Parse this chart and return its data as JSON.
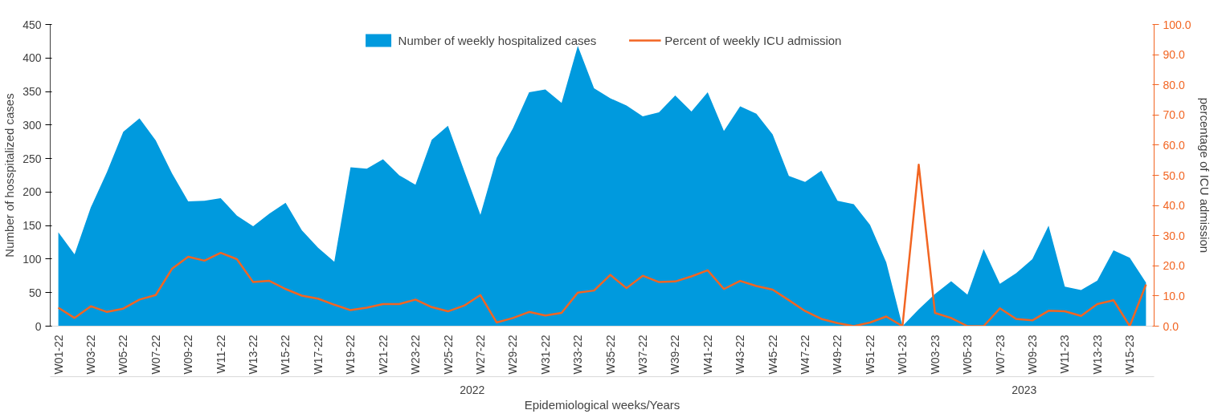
{
  "chart_data": {
    "type": "area",
    "xlabel": "Epidemiological weeks/Years",
    "ylabel": "Number of hosspitalized cases",
    "y2label": "percentage of ICU admission",
    "categories": [
      "W01-22",
      null,
      "W03-22",
      null,
      "W05-22",
      null,
      "W07-22",
      null,
      "W09-22",
      null,
      "W11-22",
      null,
      "W13-22",
      null,
      "W15-22",
      null,
      "W17-22",
      null,
      "W19-22",
      null,
      "W21-22",
      null,
      "W23-22",
      null,
      "W25-22",
      null,
      "W27-22",
      null,
      "W29-22",
      null,
      "W31-22",
      null,
      "W33-22",
      null,
      "W35-22",
      null,
      "W37-22",
      null,
      "W39-22",
      null,
      "W41-22",
      null,
      "W43-22",
      null,
      "W45-22",
      null,
      "W47-22",
      null,
      "W49-22",
      null,
      "W51-22",
      null,
      "W01-23",
      null,
      "W03-23",
      null,
      "W05-23",
      null,
      "W07-23",
      null,
      "W09-23",
      null,
      "W11-23",
      null,
      "W13-23",
      null,
      "W15-23",
      null
    ],
    "series": [
      {
        "name": "Number of weekly hospitalized cases",
        "color": "#009ade",
        "values": [
          140,
          107,
          177,
          230,
          290,
          310,
          277,
          228,
          186,
          187,
          191,
          165,
          149,
          168,
          184,
          143,
          117,
          96,
          237,
          235,
          249,
          225,
          211,
          278,
          299,
          232,
          166,
          251,
          295,
          349,
          353,
          333,
          418,
          355,
          340,
          329,
          313,
          319,
          344,
          320,
          349,
          291,
          328,
          317,
          286,
          224,
          215,
          232,
          187,
          182,
          151,
          95,
          0,
          25,
          48,
          67,
          47,
          115,
          63,
          79,
          100,
          150,
          59,
          54,
          68,
          113,
          102,
          65
        ]
      },
      {
        "name": "Percent of weekly ICU admission",
        "type": "line",
        "axis": "y2",
        "color": "#f26522",
        "values": [
          6.1,
          2.7,
          6.6,
          4.7,
          5.8,
          8.8,
          10.3,
          19.0,
          23.0,
          21.7,
          24.3,
          22.2,
          14.6,
          15.0,
          12.3,
          10.1,
          9.1,
          7.1,
          5.3,
          6.1,
          7.3,
          7.3,
          8.8,
          6.3,
          4.9,
          6.8,
          10.3,
          1.2,
          2.7,
          4.7,
          3.5,
          4.4,
          11.1,
          11.8,
          17.0,
          12.6,
          16.7,
          14.6,
          14.8,
          16.5,
          18.5,
          12.3,
          15.0,
          13.3,
          12.1,
          8.6,
          5.0,
          2.4,
          1.0,
          0,
          1.2,
          3.2,
          0,
          53.5,
          4.4,
          2.7,
          0,
          0,
          5.9,
          2.4,
          1.9,
          5.1,
          4.9,
          3.4,
          7.3,
          8.6,
          0,
          13.8
        ]
      }
    ],
    "ylim": [
      0,
      450
    ],
    "yticks": [
      0,
      50,
      100,
      150,
      200,
      250,
      300,
      350,
      400,
      450
    ],
    "y2lim": [
      0,
      100
    ],
    "y2ticks": [
      {
        "value": 0,
        "label": "0.0"
      },
      {
        "value": 10,
        "label": "10.0"
      },
      {
        "value": 20,
        "label": "20.0"
      },
      {
        "value": 30,
        "label": "30.0"
      },
      {
        "value": 40,
        "label": "40.0"
      },
      {
        "value": 50,
        "label": "50.0"
      },
      {
        "value": 60,
        "label": "60.0"
      },
      {
        "value": 70,
        "label": "70.0"
      },
      {
        "value": 80,
        "label": "80.0"
      },
      {
        "value": 90,
        "label": "90.0"
      },
      {
        "value": 100,
        "label": "100.0"
      }
    ],
    "annotations": [
      "2022",
      "2023"
    ],
    "legend": "top",
    "grid": false
  }
}
